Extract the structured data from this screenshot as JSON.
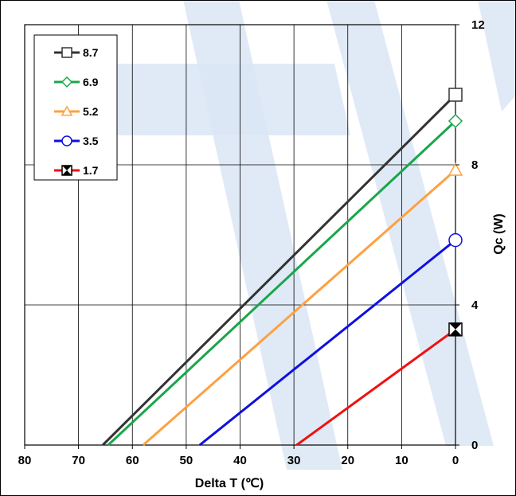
{
  "chart_data": {
    "type": "line",
    "title": "",
    "xlabel": "Delta T (℃)",
    "ylabel": "Qc (W)",
    "xlim": [
      80,
      0
    ],
    "ylim": [
      0,
      12
    ],
    "x_ticks": [
      80,
      70,
      60,
      50,
      40,
      30,
      20,
      10,
      0
    ],
    "y_ticks": [
      0,
      4,
      8,
      12
    ],
    "x_reversed": true,
    "y_axis_side": "right",
    "grid": true,
    "legend_position": "top-left",
    "series": [
      {
        "name": "8.7",
        "color": "#333333",
        "marker": "square",
        "x": [
          65.5,
          0
        ],
        "y": [
          0,
          10.0
        ]
      },
      {
        "name": "6.9",
        "color": "#1aa64a",
        "marker": "diamond",
        "x": [
          64.5,
          0
        ],
        "y": [
          0,
          9.25
        ]
      },
      {
        "name": "5.2",
        "color": "#ffa040",
        "marker": "triangle",
        "x": [
          58,
          0
        ],
        "y": [
          0,
          7.85
        ]
      },
      {
        "name": "3.5",
        "color": "#1010e0",
        "marker": "circle",
        "x": [
          47.5,
          0
        ],
        "y": [
          0,
          5.85
        ]
      },
      {
        "name": "1.7",
        "color": "#ee1111",
        "marker": "x-square",
        "x": [
          29.5,
          0
        ],
        "y": [
          0,
          3.3
        ]
      }
    ]
  }
}
